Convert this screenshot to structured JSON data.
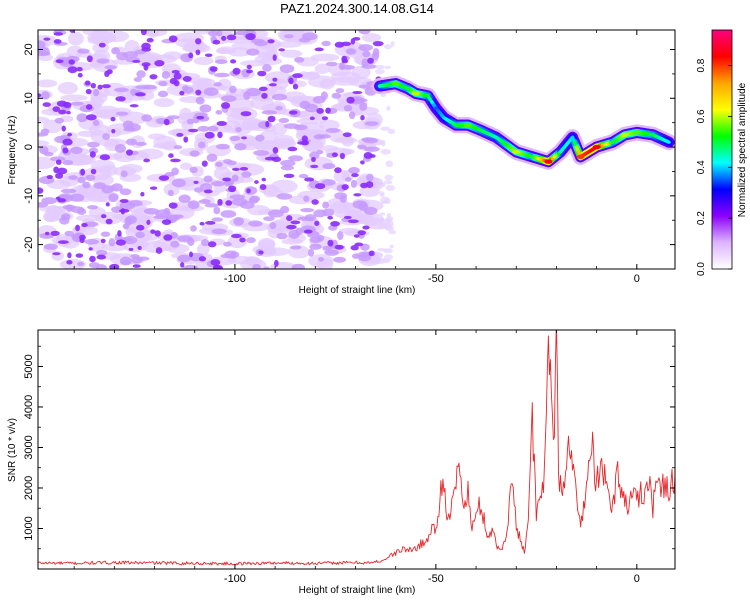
{
  "title": "PAZ1.2024.300.14.08.G14",
  "chart_data": [
    {
      "type": "heatmap",
      "xlabel": "Height of straight line (km)",
      "ylabel": "Frequency (Hz)",
      "xlim": [
        -149,
        9.5
      ],
      "ylim": [
        -25,
        24
      ],
      "x_ticks": [
        -100,
        -50,
        0
      ],
      "y_ticks": [
        -20,
        -10,
        0,
        10,
        20
      ],
      "colorbar": {
        "label": "Normalized spectral amplitude",
        "range": [
          0,
          0.94
        ],
        "ticks": [
          0.0,
          0.2,
          0.4,
          0.6,
          0.8
        ],
        "colormap": [
          "#ffffff",
          "#dcb4ff",
          "#8c00ff",
          "#0000ff",
          "#00ffff",
          "#00ff00",
          "#ffff00",
          "#ffa500",
          "#ff0000",
          "#ff0080"
        ]
      },
      "noise_region_x": [
        -149,
        -64
      ],
      "signal_track": [
        {
          "x": -64,
          "f": 12.5,
          "amp": 0.45
        },
        {
          "x": -60,
          "f": 13.0,
          "amp": 0.55
        },
        {
          "x": -57,
          "f": 12.0,
          "amp": 0.5
        },
        {
          "x": -55,
          "f": 11.0,
          "amp": 0.6
        },
        {
          "x": -52,
          "f": 10.5,
          "amp": 0.5
        },
        {
          "x": -50,
          "f": 8.0,
          "amp": 0.35
        },
        {
          "x": -48,
          "f": 6.0,
          "amp": 0.4
        },
        {
          "x": -45,
          "f": 4.5,
          "amp": 0.5
        },
        {
          "x": -42,
          "f": 4.5,
          "amp": 0.55
        },
        {
          "x": -39,
          "f": 3.5,
          "amp": 0.5
        },
        {
          "x": -35,
          "f": 2.0,
          "amp": 0.45
        },
        {
          "x": -30,
          "f": -1.0,
          "amp": 0.6
        },
        {
          "x": -26,
          "f": -2.0,
          "amp": 0.5
        },
        {
          "x": -22,
          "f": -3.0,
          "amp": 0.85
        },
        {
          "x": -19,
          "f": -1.0,
          "amp": 0.45
        },
        {
          "x": -16,
          "f": 2.0,
          "amp": 0.4
        },
        {
          "x": -14,
          "f": -2.0,
          "amp": 0.8
        },
        {
          "x": -10,
          "f": 0.0,
          "amp": 0.85
        },
        {
          "x": -6,
          "f": 1.0,
          "amp": 0.5
        },
        {
          "x": -3,
          "f": 2.5,
          "amp": 0.6
        },
        {
          "x": 0,
          "f": 3.0,
          "amp": 0.55
        },
        {
          "x": 4,
          "f": 2.5,
          "amp": 0.5
        },
        {
          "x": 8,
          "f": 1.0,
          "amp": 0.4
        }
      ]
    },
    {
      "type": "line",
      "xlabel": "Height of straight line (km)",
      "ylabel": "SNR (10 * v/v)",
      "xlim": [
        -149,
        9.5
      ],
      "ylim": [
        0,
        5900
      ],
      "x_ticks": [
        -100,
        -50,
        0
      ],
      "y_ticks": [
        1000,
        2000,
        3000,
        4000,
        5000
      ],
      "color": "#e8262a",
      "series": [
        {
          "x": [
            -149,
            -140,
            -130,
            -120,
            -110,
            -100,
            -90,
            -80,
            -70,
            -66,
            -63,
            -60,
            -58,
            -56,
            -54,
            -52,
            -51,
            -50,
            -49,
            -48,
            -47,
            -46,
            -45,
            -44,
            -43,
            -42,
            -41,
            -40,
            -39,
            -38,
            -37,
            -36,
            -35,
            -34,
            -33,
            -32,
            -31,
            -30,
            -29,
            -28,
            -27,
            -26,
            -25,
            -24,
            -23,
            -22,
            -21,
            -20.5,
            -20,
            -19.5,
            -19,
            -18,
            -17,
            -16,
            -15,
            -14,
            -13,
            -12,
            -11,
            -10,
            -9,
            -8,
            -7,
            -6,
            -5,
            -4,
            -3,
            -2,
            -1,
            0,
            1,
            2,
            3,
            4,
            5,
            6,
            7,
            8,
            9.5
          ],
          "y": [
            150,
            140,
            160,
            150,
            140,
            130,
            150,
            140,
            160,
            150,
            220,
            400,
            500,
            450,
            600,
            700,
            1100,
            900,
            1800,
            2300,
            1100,
            1500,
            2100,
            2700,
            1400,
            1900,
            1000,
            1300,
            1600,
            1200,
            800,
            1000,
            600,
            450,
            650,
            1250,
            2300,
            1000,
            800,
            400,
            1300,
            3600,
            1300,
            1800,
            2200,
            5800,
            4400,
            2800,
            5800,
            2500,
            2000,
            1800,
            3600,
            2800,
            1600,
            1100,
            1700,
            2500,
            3000,
            2100,
            2400,
            2300,
            1700,
            1500,
            2400,
            2000,
            1800,
            1400,
            2100,
            1600,
            2000,
            1800,
            2400,
            1500,
            2300,
            1800,
            2200,
            2000,
            2300
          ]
        }
      ]
    }
  ]
}
